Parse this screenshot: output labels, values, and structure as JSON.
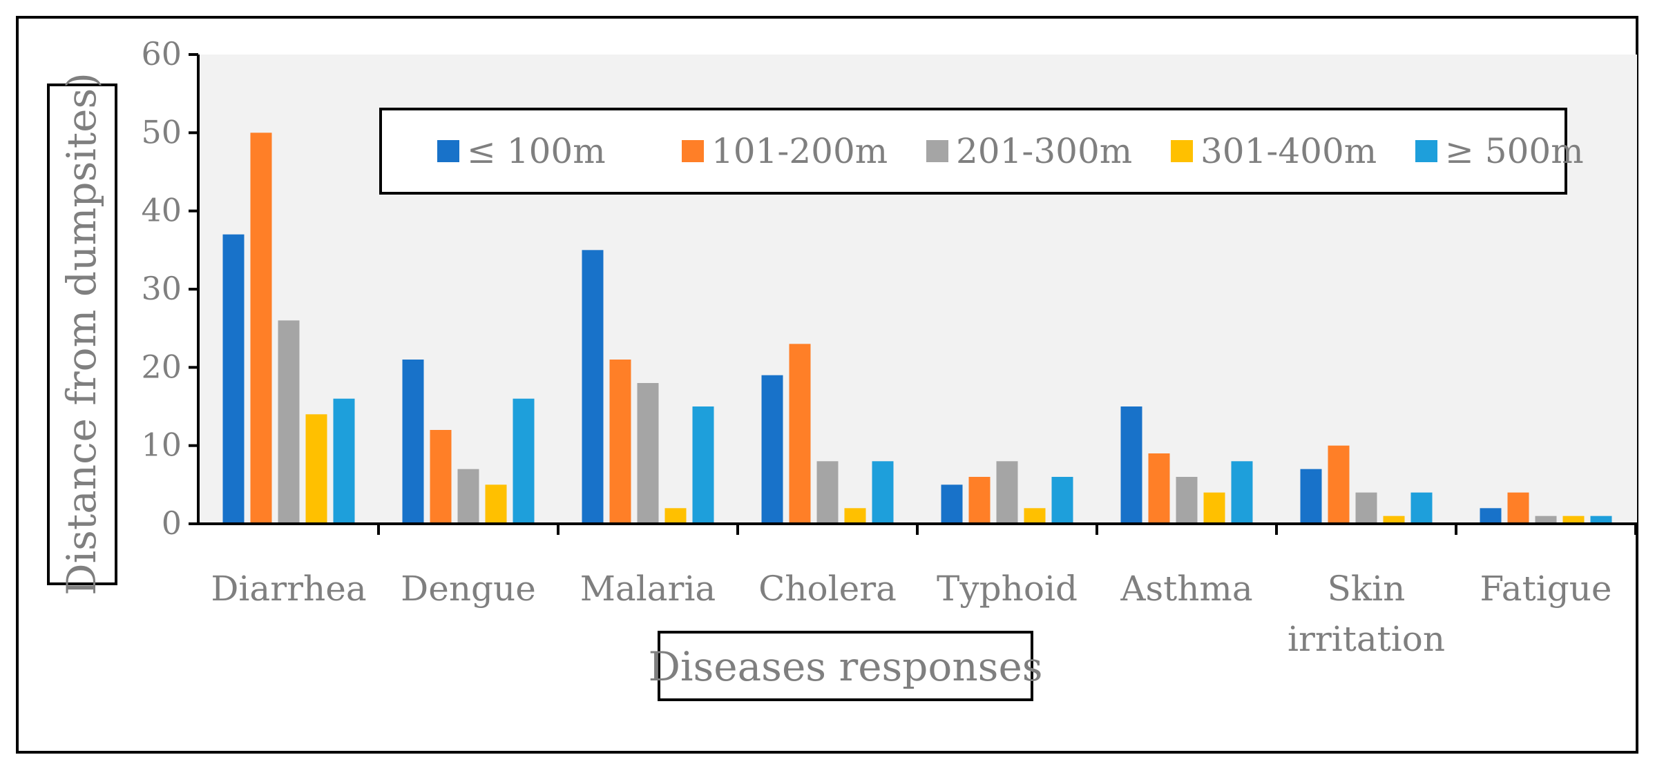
{
  "chart_data": {
    "type": "bar",
    "title": "",
    "xlabel": "Diseases responses",
    "ylabel": "Distance from dumpsites)",
    "ylim": [
      0,
      60
    ],
    "yticks": [
      "0",
      "10",
      "20",
      "30",
      "40",
      "50",
      "60"
    ],
    "categories": [
      "Diarrhea",
      "Dengue",
      "Malaria",
      "Cholera",
      "Typhoid",
      "Asthma",
      "Skin irritation",
      "Fatigue"
    ],
    "category_lines": [
      [
        "Diarrhea"
      ],
      [
        "Dengue"
      ],
      [
        "Malaria"
      ],
      [
        "Cholera"
      ],
      [
        "Typhoid"
      ],
      [
        "Asthma"
      ],
      [
        "Skin",
        "irritation"
      ],
      [
        "Fatigue"
      ]
    ],
    "legend_position": "top-center",
    "grid": false,
    "series": [
      {
        "name": "≤ 100m",
        "color": "#1872c9",
        "values": [
          37,
          21,
          35,
          19,
          5,
          15,
          7,
          2
        ]
      },
      {
        "name": "101-200m",
        "color": "#ff7f27",
        "values": [
          50,
          12,
          21,
          23,
          6,
          9,
          10,
          4
        ]
      },
      {
        "name": "201-300m",
        "color": "#a5a5a5",
        "values": [
          26,
          7,
          18,
          8,
          8,
          6,
          4,
          1
        ]
      },
      {
        "name": "301-400m",
        "color": "#ffc000",
        "values": [
          14,
          5,
          2,
          2,
          2,
          4,
          1,
          1
        ]
      },
      {
        "name": "≥ 500m",
        "color": "#1e9fdb",
        "values": [
          16,
          16,
          15,
          8,
          6,
          8,
          4,
          1
        ]
      }
    ]
  }
}
